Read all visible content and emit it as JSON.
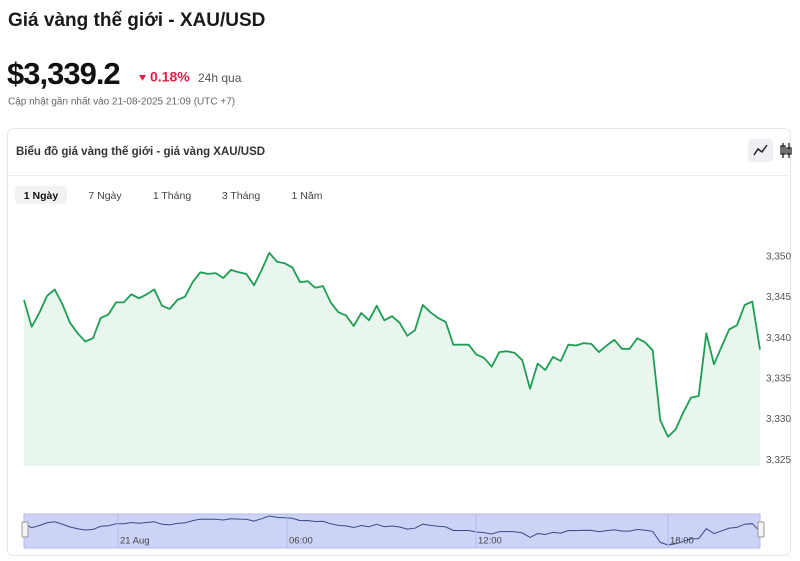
{
  "header": {
    "title": "Giá vàng thế giới - XAU/USD",
    "price": "$3,339.2",
    "change": "0.18%",
    "period": "24h qua",
    "updated": "Cập nhật gần nhất vào 21-08-2025 21:09 (UTC +7)"
  },
  "card": {
    "title": "Biểu đồ giá vàng thế giới - giá vàng XAU/USD",
    "tabs": [
      "1 Ngày",
      "7 Ngày",
      "1 Tháng",
      "3 Tháng",
      "1 Năm"
    ],
    "selected_tab": 0
  },
  "chart_data": {
    "type": "line",
    "color": "#1f9d55",
    "values": [
      3344.7,
      3341.4,
      3343.1,
      3345.2,
      3346.0,
      3344.2,
      3341.9,
      3340.6,
      3339.6,
      3340.0,
      3342.5,
      3342.9,
      3344.4,
      3344.4,
      3345.4,
      3344.9,
      3345.4,
      3346.0,
      3344.0,
      3343.6,
      3344.7,
      3345.1,
      3346.9,
      3348.1,
      3347.9,
      3348.0,
      3347.4,
      3348.4,
      3348.1,
      3347.9,
      3346.5,
      3348.4,
      3350.5,
      3349.4,
      3349.2,
      3348.7,
      3346.9,
      3347.0,
      3346.2,
      3346.4,
      3344.4,
      3343.2,
      3342.8,
      3341.5,
      3343.1,
      3342.2,
      3344.0,
      3342.2,
      3342.7,
      3341.9,
      3340.3,
      3341.0,
      3344.1,
      3343.2,
      3342.5,
      3342.0,
      3339.2,
      3339.2,
      3339.2,
      3338.0,
      3337.6,
      3336.5,
      3338.3,
      3338.4,
      3338.2,
      3337.3,
      3333.8,
      3336.9,
      3336.1,
      3337.7,
      3337.2,
      3339.2,
      3339.1,
      3339.4,
      3339.3,
      3338.3,
      3339.1,
      3339.8,
      3338.7,
      3338.7,
      3340.0,
      3339.5,
      3338.5,
      3329.9,
      3327.9,
      3328.8,
      3330.9,
      3332.7,
      3332.9,
      3340.6,
      3336.8,
      3339.0,
      3341.1,
      3341.6,
      3344.1,
      3344.5,
      3338.6
    ],
    "ylim": [
      3324.3,
      3356
    ],
    "yticks": [
      {
        "value": 3325,
        "label": "3,325"
      },
      {
        "value": 3330,
        "label": "3,330"
      },
      {
        "value": 3335,
        "label": "3,335"
      },
      {
        "value": 3340,
        "label": "3,340"
      },
      {
        "value": 3345,
        "label": "3,345"
      },
      {
        "value": 3350,
        "label": "3,350"
      }
    ],
    "navigator_labels": [
      "21 Aug",
      "06:00",
      "12:00",
      "18:00"
    ]
  }
}
